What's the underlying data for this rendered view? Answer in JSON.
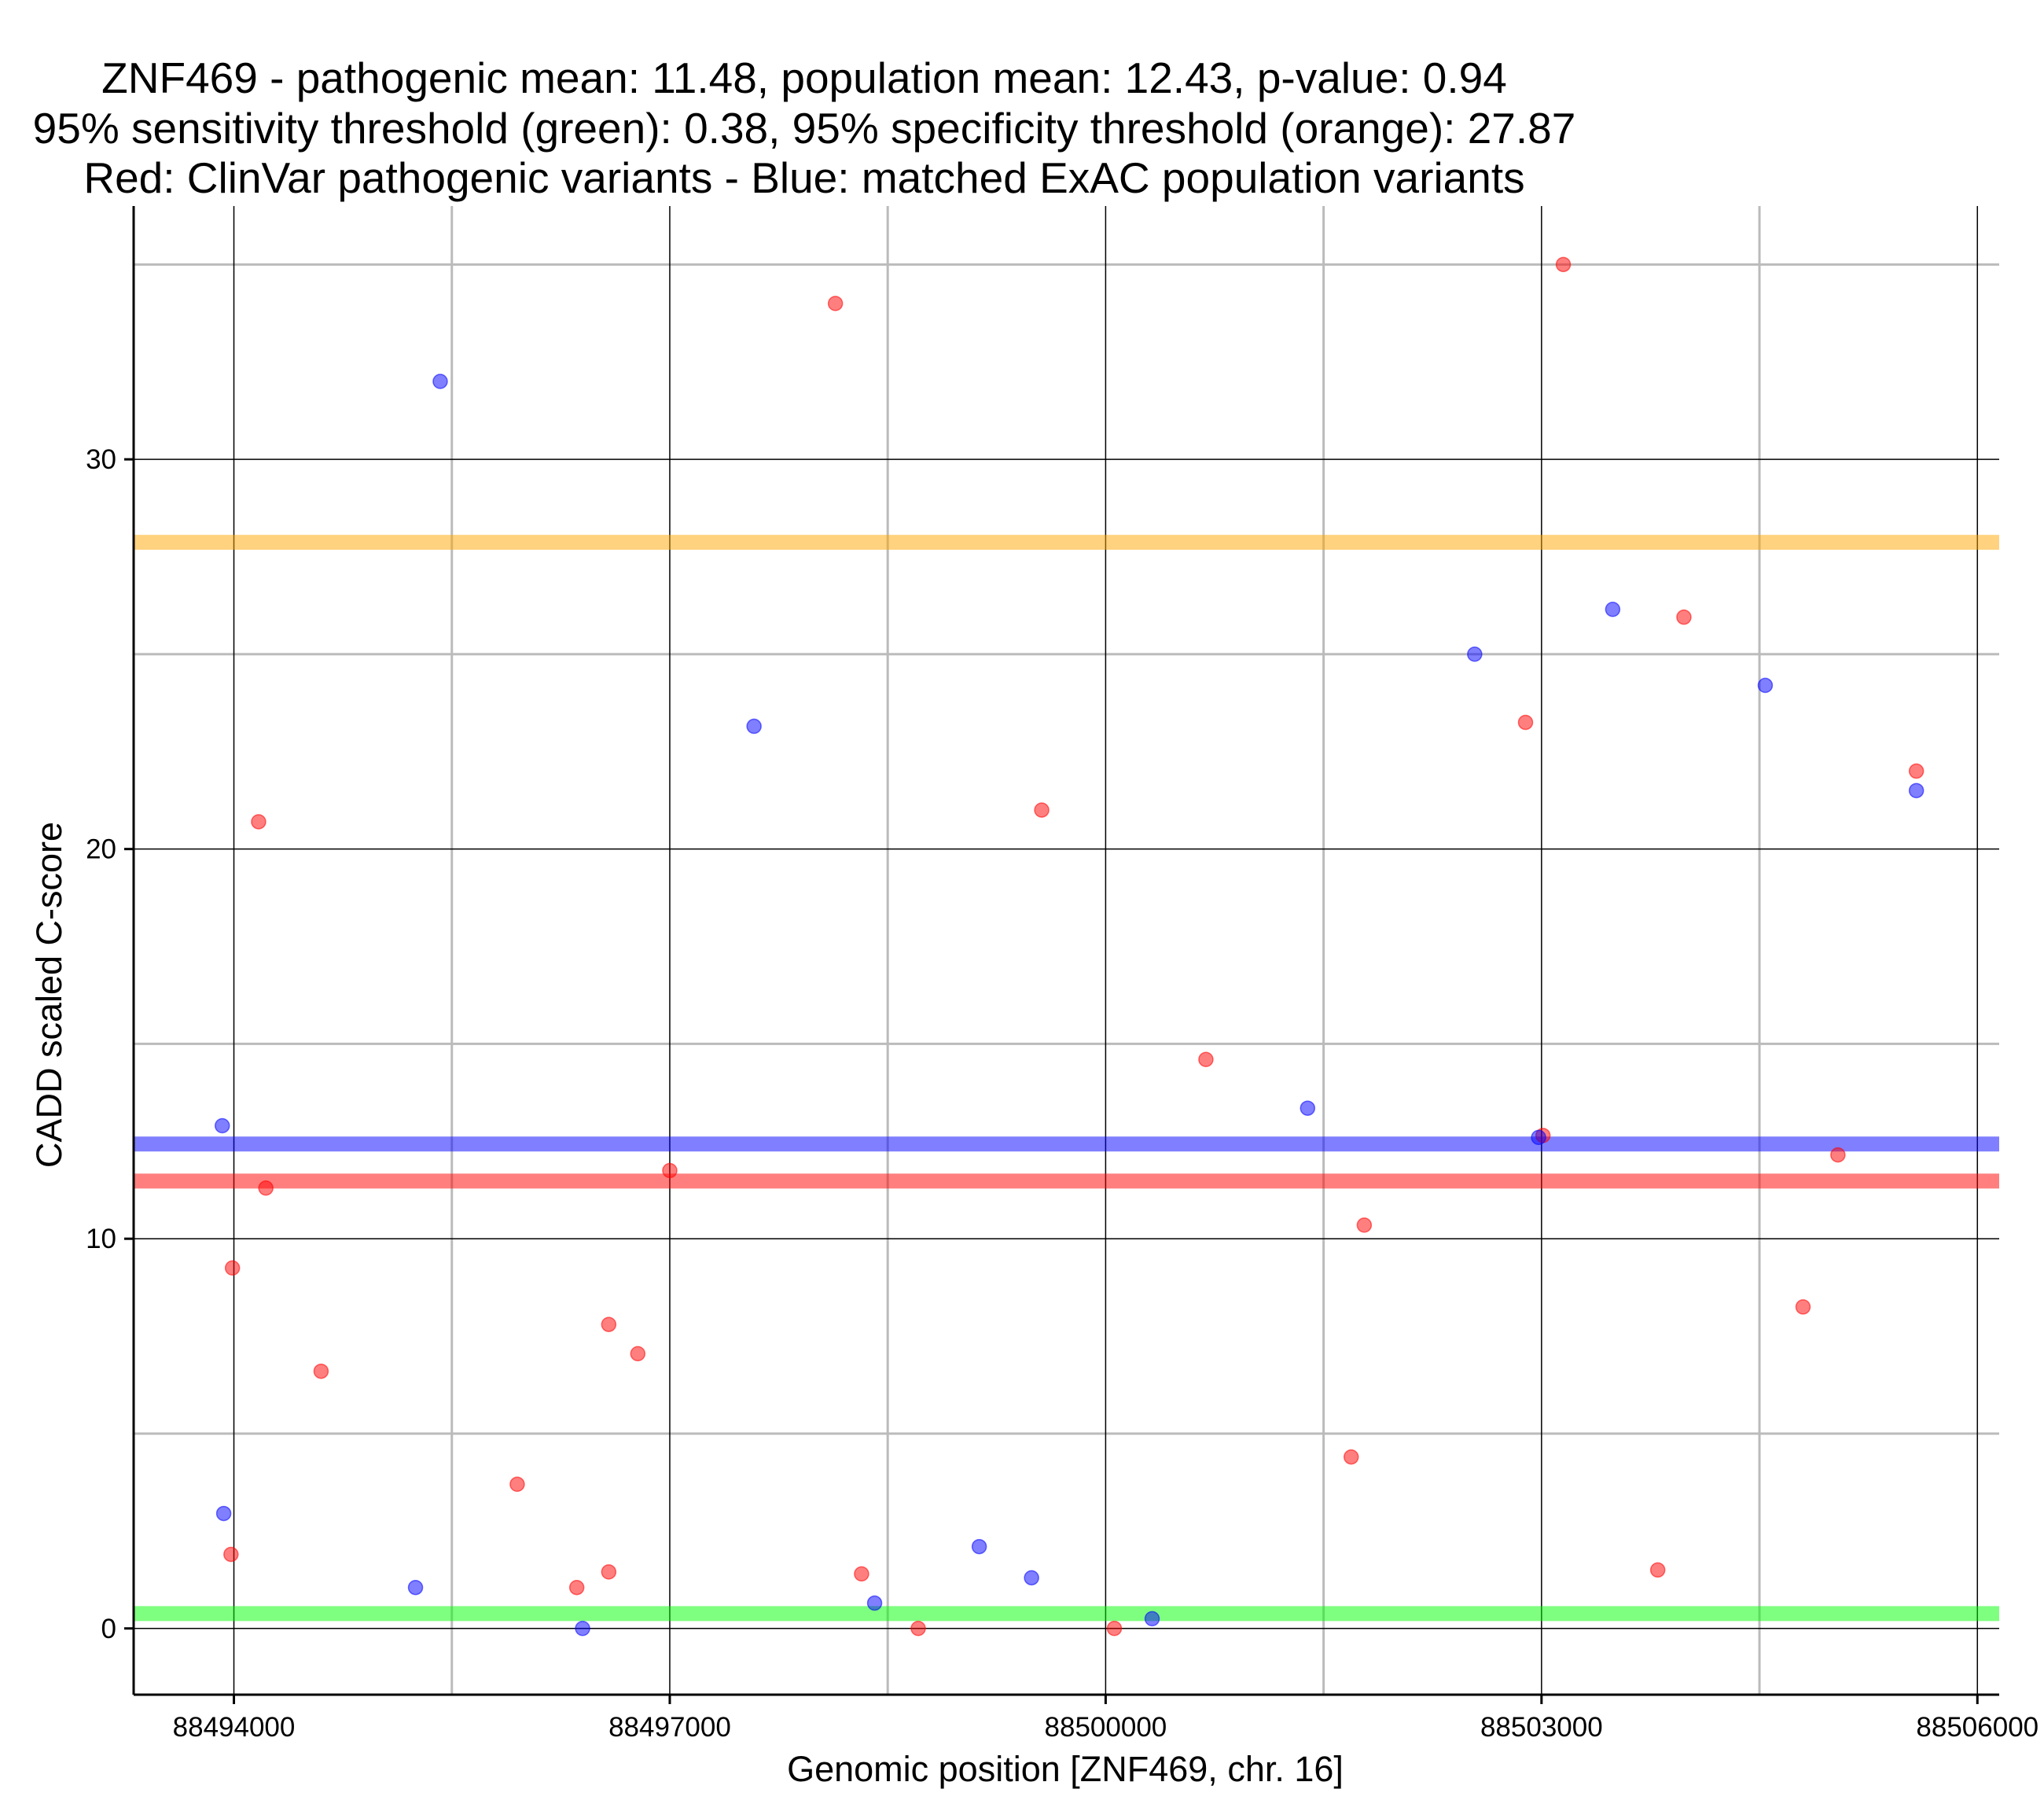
{
  "chart_data": {
    "type": "scatter",
    "title_lines": [
      "ZNF469 - pathogenic mean: 11.48, population mean: 12.43, p-value: 0.94",
      "95% sensitivity threshold (green): 0.38, 95% specificity threshold (orange): 27.87",
      "Red: ClinVar pathogenic variants - Blue: matched ExAC population variants"
    ],
    "xlabel": "Genomic position [ZNF469, chr. 16]",
    "ylabel": "CADD scaled C-score",
    "xlim": [
      88493310,
      88506150
    ],
    "ylim": [
      -1.7,
      36.5
    ],
    "x_major_ticks": [
      88494000,
      88497000,
      88500000,
      88503000,
      88506000
    ],
    "x_tick_labels": [
      "88494000",
      "88497000",
      "88500000",
      "88503000",
      "88506000"
    ],
    "x_minor_ticks": [
      88495500,
      88498500,
      88501500,
      88504500
    ],
    "y_major_ticks": [
      0,
      10,
      20,
      30
    ],
    "y_tick_labels": [
      "0",
      "10",
      "20",
      "30"
    ],
    "y_minor_ticks": [
      5,
      15,
      25,
      35
    ],
    "grid": true,
    "colors": {
      "pathogenic": "#ff0000",
      "population": "#0000ff",
      "sensitivity": "#00ff00",
      "specificity": "#ffa500",
      "grid_major": "#000000",
      "grid_minor": "#bbbbbb"
    },
    "hlines": [
      {
        "name": "pathogenic-mean",
        "y": 11.48,
        "color": "#ff0000"
      },
      {
        "name": "population-mean",
        "y": 12.43,
        "color": "#0000ff"
      },
      {
        "name": "sensitivity-threshold",
        "y": 0.38,
        "color": "#00ff00"
      },
      {
        "name": "specificity-threshold",
        "y": 27.87,
        "color": "#ffa500"
      }
    ],
    "series": [
      {
        "name": "ClinVar pathogenic variants",
        "color": "#ff0000",
        "points": [
          {
            "x": 88493980,
            "y": 1.9
          },
          {
            "x": 88493990,
            "y": 9.25
          },
          {
            "x": 88494170,
            "y": 20.7
          },
          {
            "x": 88494220,
            "y": 11.3
          },
          {
            "x": 88494600,
            "y": 6.6
          },
          {
            "x": 88495950,
            "y": 3.7
          },
          {
            "x": 88496360,
            "y": 1.05
          },
          {
            "x": 88496580,
            "y": 7.8
          },
          {
            "x": 88496580,
            "y": 1.45
          },
          {
            "x": 88496780,
            "y": 7.05
          },
          {
            "x": 88497000,
            "y": 11.75
          },
          {
            "x": 88498140,
            "y": 34.0
          },
          {
            "x": 88498320,
            "y": 1.4
          },
          {
            "x": 88498710,
            "y": 0.0
          },
          {
            "x": 88499560,
            "y": 21.0
          },
          {
            "x": 88500060,
            "y": 0.0
          },
          {
            "x": 88500690,
            "y": 14.6
          },
          {
            "x": 88501690,
            "y": 4.4
          },
          {
            "x": 88501780,
            "y": 10.35
          },
          {
            "x": 88502890,
            "y": 23.25
          },
          {
            "x": 88503010,
            "y": 12.65
          },
          {
            "x": 88503150,
            "y": 35.0
          },
          {
            "x": 88503800,
            "y": 1.5
          },
          {
            "x": 88503980,
            "y": 25.95
          },
          {
            "x": 88504800,
            "y": 8.25
          },
          {
            "x": 88505040,
            "y": 12.15
          },
          {
            "x": 88505580,
            "y": 22.0
          }
        ]
      },
      {
        "name": "matched ExAC population variants",
        "color": "#0000ff",
        "points": [
          {
            "x": 88493920,
            "y": 12.9
          },
          {
            "x": 88493930,
            "y": 2.95
          },
          {
            "x": 88495420,
            "y": 32.0
          },
          {
            "x": 88495250,
            "y": 1.05
          },
          {
            "x": 88496400,
            "y": 0.0
          },
          {
            "x": 88497580,
            "y": 23.15
          },
          {
            "x": 88498410,
            "y": 0.65
          },
          {
            "x": 88499130,
            "y": 2.1
          },
          {
            "x": 88499490,
            "y": 1.3
          },
          {
            "x": 88500320,
            "y": 0.25
          },
          {
            "x": 88501390,
            "y": 13.35
          },
          {
            "x": 88502540,
            "y": 25.0
          },
          {
            "x": 88502980,
            "y": 12.6
          },
          {
            "x": 88503490,
            "y": 26.15
          },
          {
            "x": 88504540,
            "y": 24.2
          },
          {
            "x": 88505580,
            "y": 21.5
          }
        ]
      }
    ]
  }
}
